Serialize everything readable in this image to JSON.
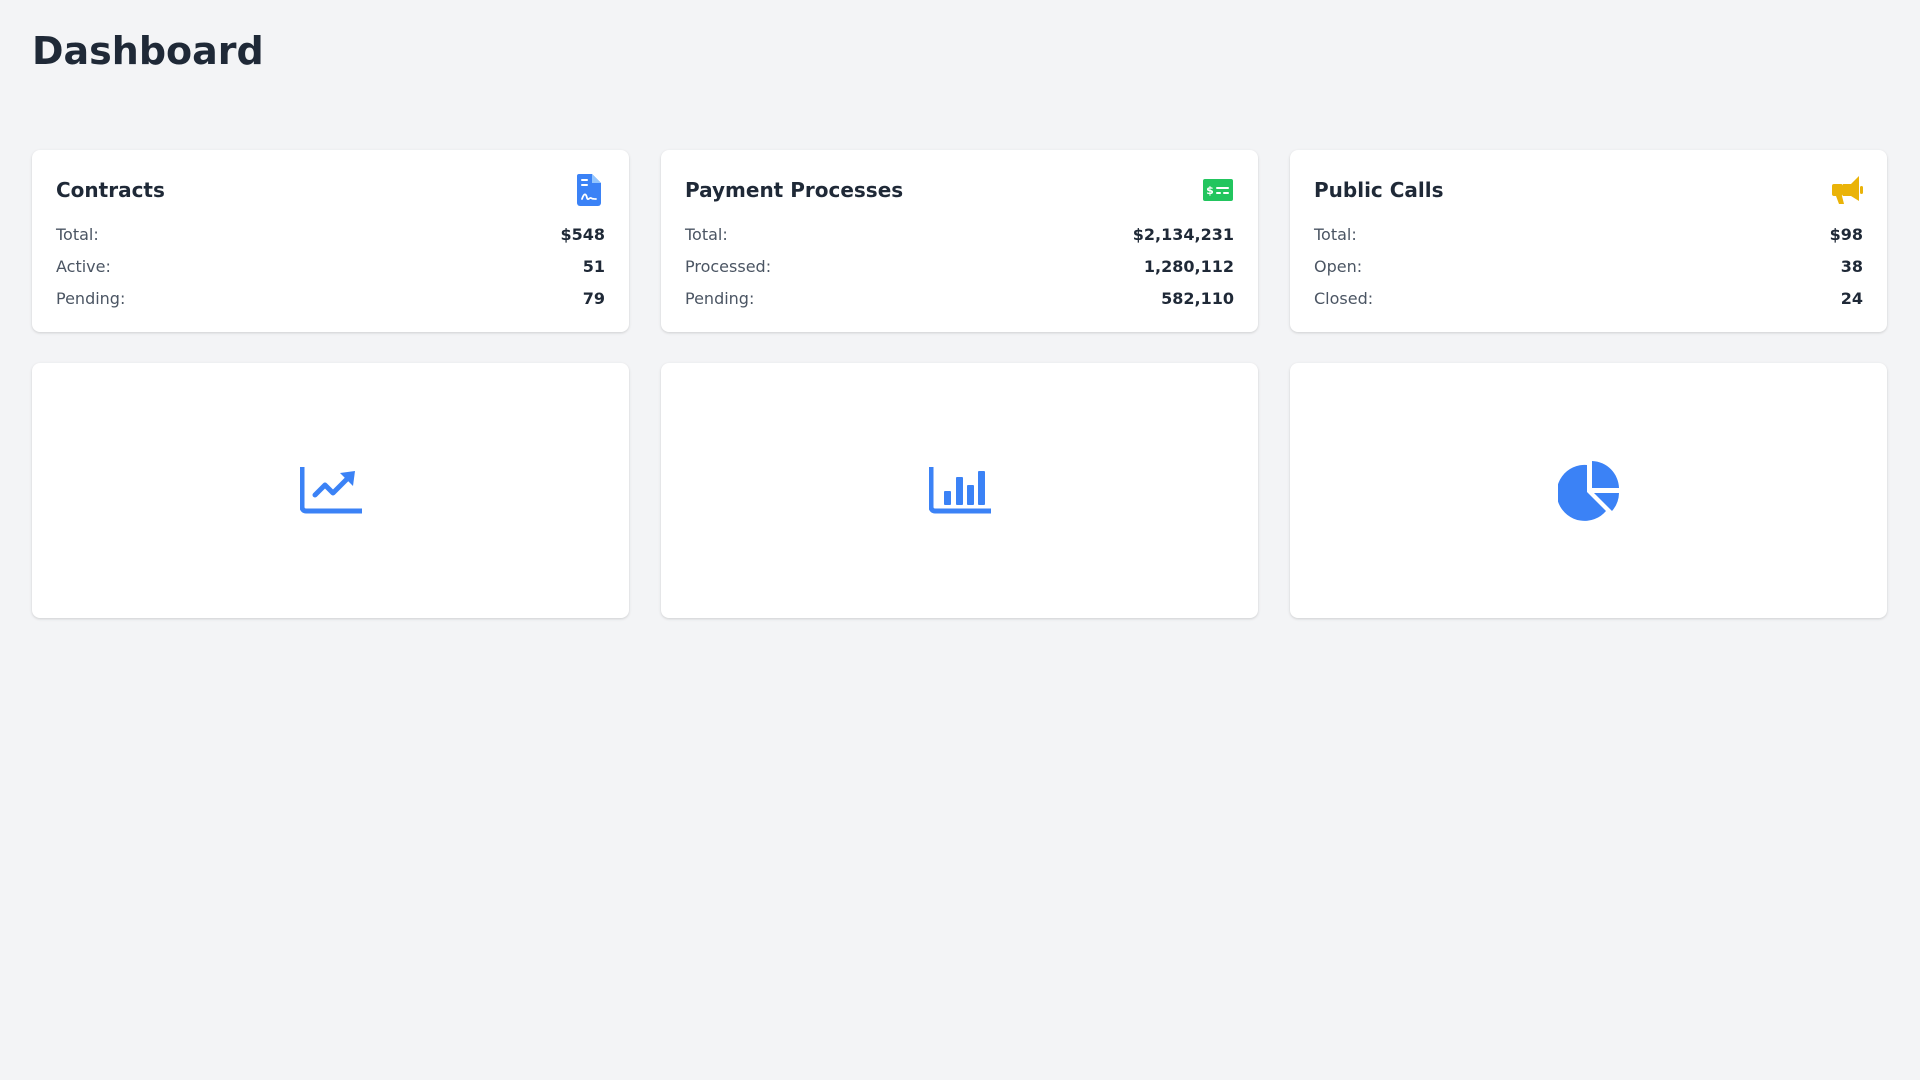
{
  "page": {
    "title": "Dashboard"
  },
  "colors": {
    "background": "#f3f4f6",
    "text_primary": "#1f2937",
    "text_secondary": "#4b5563",
    "accent_blue": "#3b82f6",
    "accent_green": "#22c55e",
    "accent_yellow": "#eab308"
  },
  "cards": [
    {
      "title": "Contracts",
      "icon": "file-contract-icon",
      "rows": [
        {
          "label": "Total:",
          "value": "$548"
        },
        {
          "label": "Active:",
          "value": "51"
        },
        {
          "label": "Pending:",
          "value": "79"
        }
      ]
    },
    {
      "title": "Payment Processes",
      "icon": "money-check-icon",
      "rows": [
        {
          "label": "Total:",
          "value": "$2,134,231"
        },
        {
          "label": "Processed:",
          "value": "1,280,112"
        },
        {
          "label": "Pending:",
          "value": "582,110"
        }
      ]
    },
    {
      "title": "Public Calls",
      "icon": "bullhorn-icon",
      "rows": [
        {
          "label": "Total:",
          "value": "$98"
        },
        {
          "label": "Open:",
          "value": "38"
        },
        {
          "label": "Closed:",
          "value": "24"
        }
      ]
    }
  ],
  "charts": [
    {
      "icon": "line-chart-icon"
    },
    {
      "icon": "bar-chart-icon"
    },
    {
      "icon": "pie-chart-icon"
    }
  ]
}
